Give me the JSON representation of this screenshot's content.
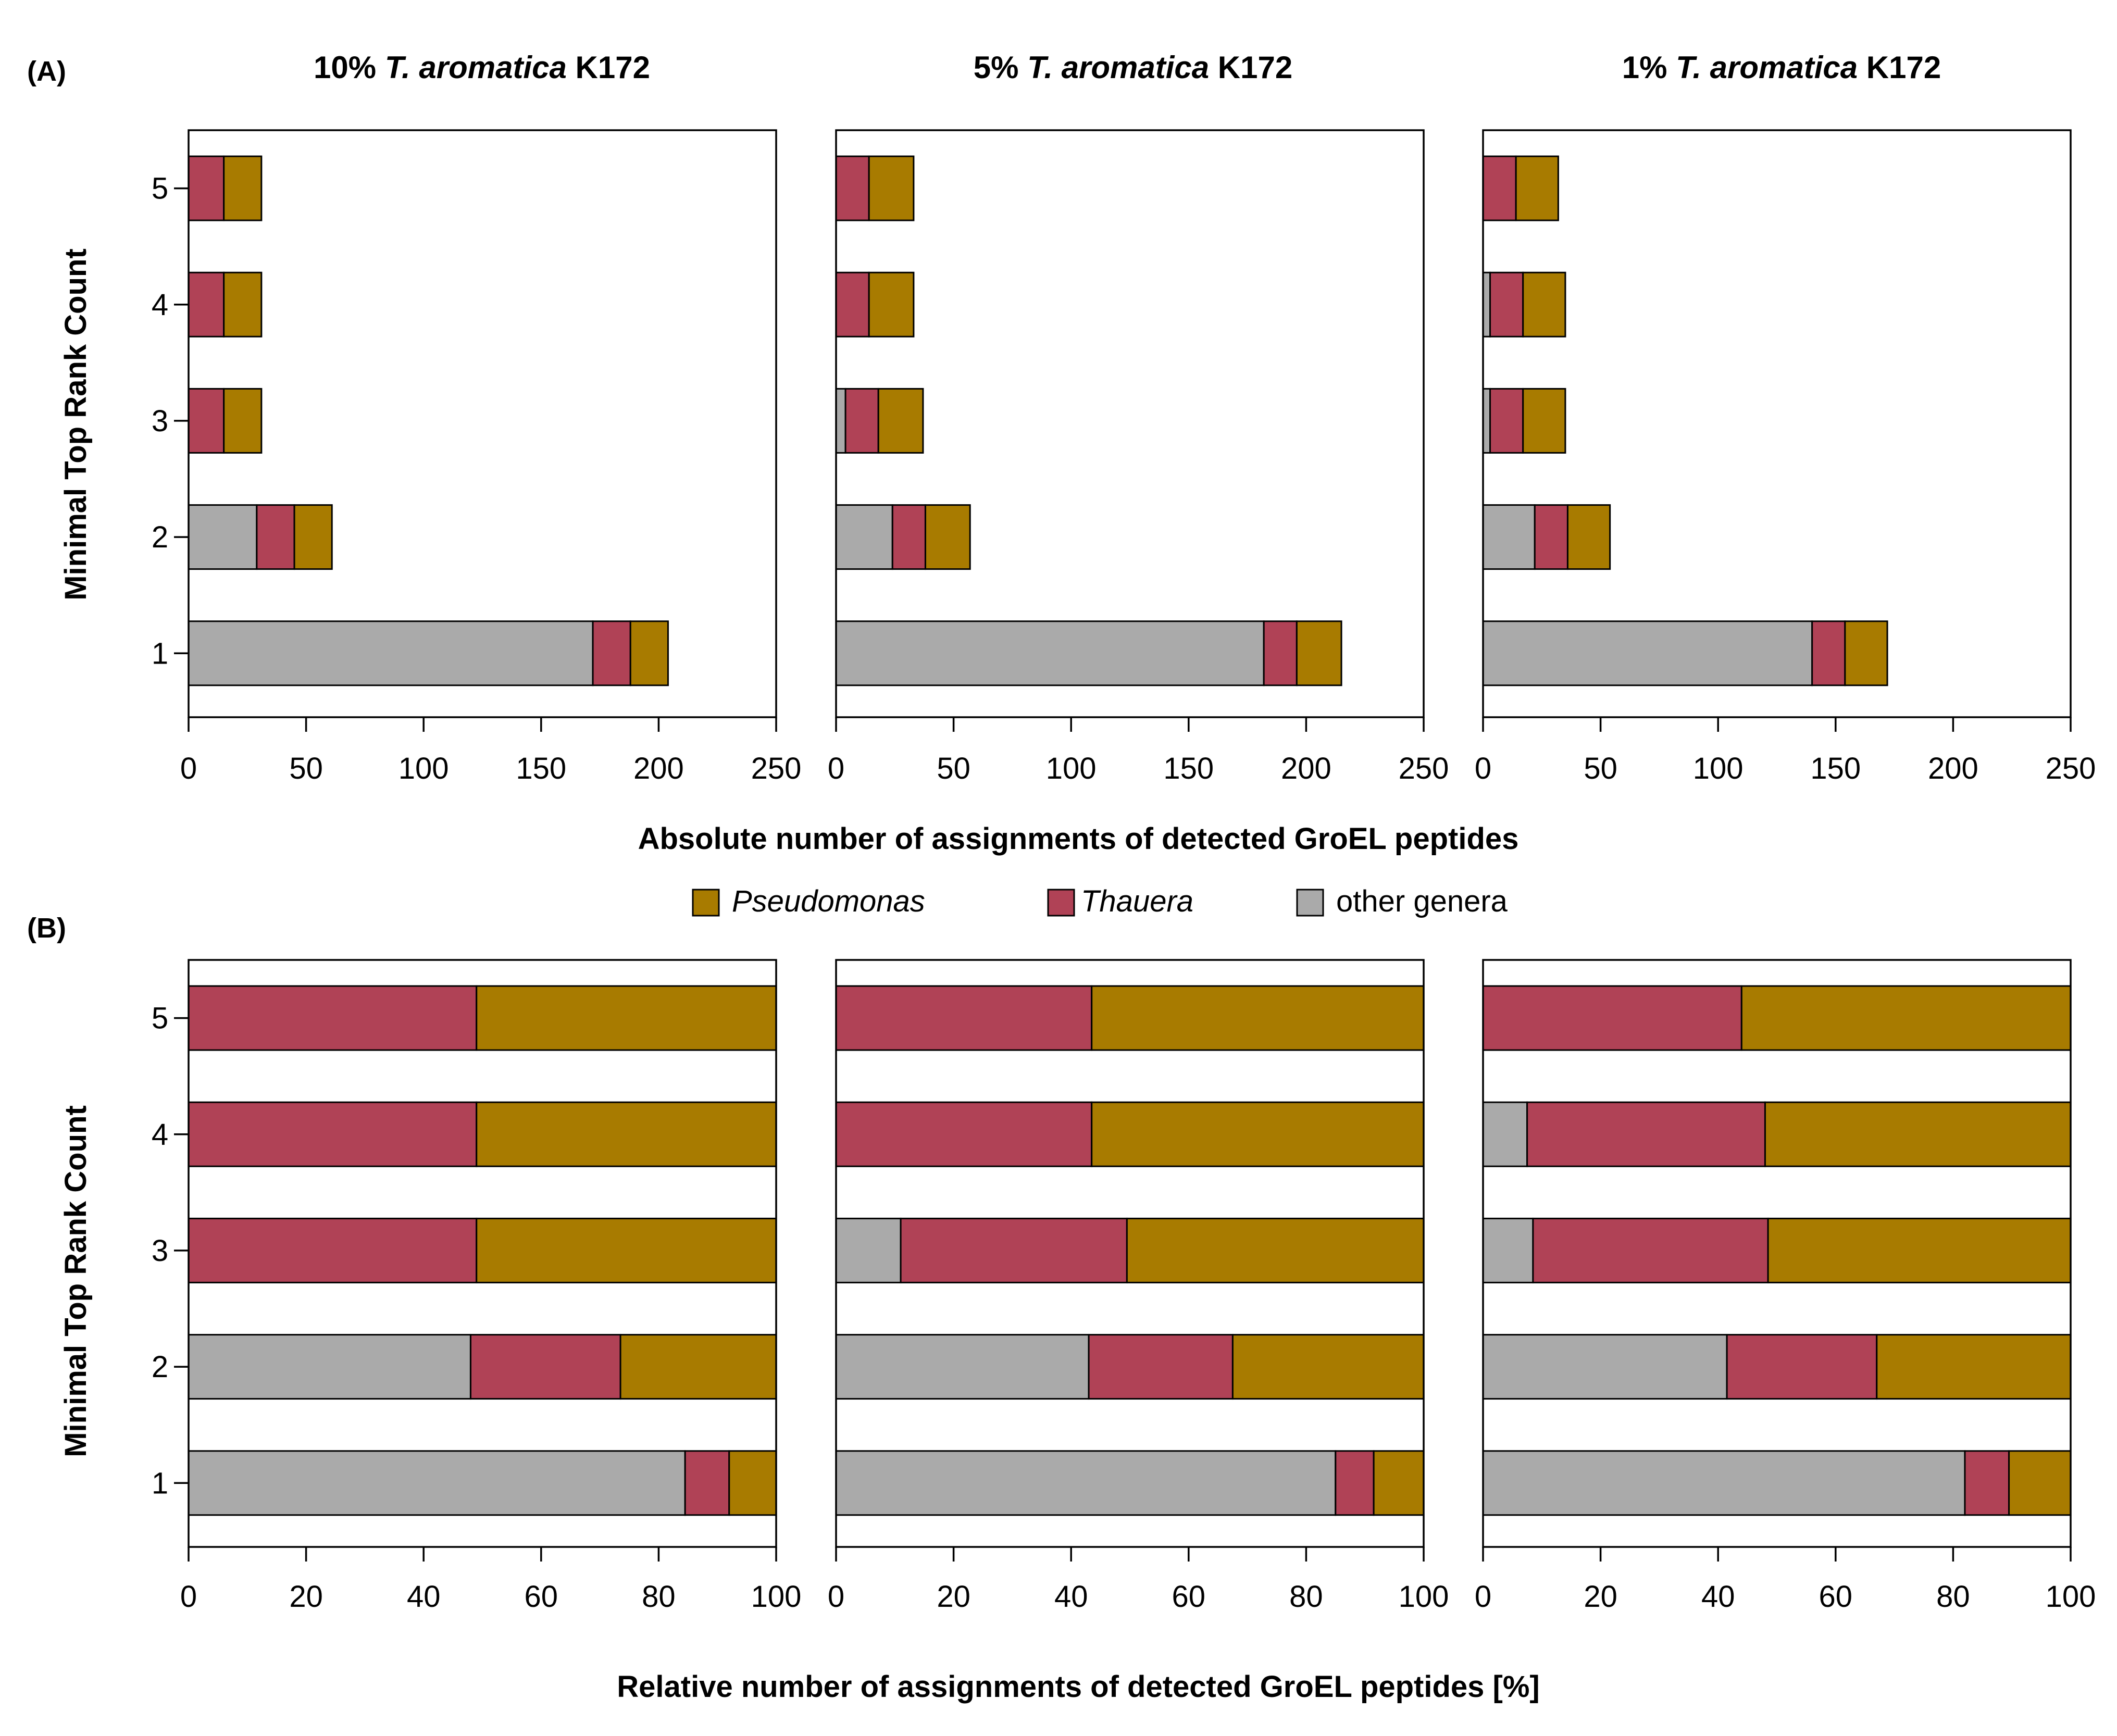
{
  "figure": {
    "panel_a_label": "(A)",
    "panel_b_label": "(B)",
    "column_titles": [
      {
        "prefix": "10% ",
        "species": "T. aromatica",
        "strain": " K172"
      },
      {
        "prefix": "5% ",
        "species": "T. aromatica",
        "strain": " K172"
      },
      {
        "prefix": "1% ",
        "species": "T. aromatica",
        "strain": " K172"
      }
    ],
    "ylabel": "Minimal Top Rank Count",
    "xlabel_a": "Absolute number of assignments of detected GroEL peptides",
    "xlabel_b": "Relative number of assignments of detected GroEL peptides [%]",
    "legend": [
      {
        "name": "Pseudomonas",
        "color": "#a87b00",
        "italic": true
      },
      {
        "name": "Thauera",
        "color": "#b04256",
        "italic": true
      },
      {
        "name": "other genera",
        "color": "#aaaaaa",
        "italic": false
      }
    ],
    "colors": {
      "other": "#aaaaaa",
      "thauera": "#b04256",
      "pseudomonas": "#a87b00"
    }
  },
  "chart_data": [
    {
      "type": "bar",
      "orientation": "horizontal",
      "stacked": true,
      "panel": "A",
      "title": "10% T. aromatica K172",
      "categories": [
        "1",
        "2",
        "3",
        "4",
        "5"
      ],
      "xlim": [
        0,
        250
      ],
      "xticks": [
        0,
        50,
        100,
        150,
        200,
        250
      ],
      "yticks": [
        1,
        2,
        3,
        4,
        5
      ],
      "series": [
        {
          "name": "other genera",
          "values": [
            172,
            29,
            0,
            0,
            0
          ]
        },
        {
          "name": "Thauera",
          "values": [
            16,
            16,
            15,
            15,
            15
          ]
        },
        {
          "name": "Pseudomonas",
          "values": [
            16,
            16,
            16,
            16,
            16
          ]
        }
      ]
    },
    {
      "type": "bar",
      "orientation": "horizontal",
      "stacked": true,
      "panel": "A",
      "title": "5% T. aromatica K172",
      "categories": [
        "1",
        "2",
        "3",
        "4",
        "5"
      ],
      "xlim": [
        0,
        250
      ],
      "xticks": [
        0,
        50,
        100,
        150,
        200,
        250
      ],
      "yticks": [
        1,
        2,
        3,
        4,
        5
      ],
      "series": [
        {
          "name": "other genera",
          "values": [
            182,
            24,
            4,
            0,
            0
          ]
        },
        {
          "name": "Thauera",
          "values": [
            14,
            14,
            14,
            14,
            14
          ]
        },
        {
          "name": "Pseudomonas",
          "values": [
            19,
            19,
            19,
            19,
            19
          ]
        }
      ]
    },
    {
      "type": "bar",
      "orientation": "horizontal",
      "stacked": true,
      "panel": "A",
      "title": "1% T. aromatica K172",
      "categories": [
        "1",
        "2",
        "3",
        "4",
        "5"
      ],
      "xlim": [
        0,
        250
      ],
      "xticks": [
        0,
        50,
        100,
        150,
        200,
        250
      ],
      "yticks": [
        1,
        2,
        3,
        4,
        5
      ],
      "series": [
        {
          "name": "other genera",
          "values": [
            140,
            22,
            3,
            3,
            0
          ]
        },
        {
          "name": "Thauera",
          "values": [
            14,
            14,
            14,
            14,
            14
          ]
        },
        {
          "name": "Pseudomonas",
          "values": [
            18,
            18,
            18,
            18,
            18
          ]
        }
      ]
    },
    {
      "type": "bar",
      "orientation": "horizontal",
      "stacked": true,
      "panel": "B",
      "title": "10% T. aromatica K172",
      "categories": [
        "1",
        "2",
        "3",
        "4",
        "5"
      ],
      "xlim": [
        0,
        100
      ],
      "xticks": [
        0,
        20,
        40,
        60,
        80,
        100
      ],
      "yticks": [
        1,
        2,
        3,
        4,
        5
      ],
      "series": [
        {
          "name": "other genera",
          "values": [
            84.5,
            48,
            0,
            0,
            0
          ]
        },
        {
          "name": "Thauera",
          "values": [
            7.5,
            25.5,
            49,
            49,
            49
          ]
        },
        {
          "name": "Pseudomonas",
          "values": [
            8,
            26.5,
            51,
            51,
            51
          ]
        }
      ]
    },
    {
      "type": "bar",
      "orientation": "horizontal",
      "stacked": true,
      "panel": "B",
      "title": "5% T. aromatica K172",
      "categories": [
        "1",
        "2",
        "3",
        "4",
        "5"
      ],
      "xlim": [
        0,
        100
      ],
      "xticks": [
        0,
        20,
        40,
        60,
        80,
        100
      ],
      "yticks": [
        1,
        2,
        3,
        4,
        5
      ],
      "series": [
        {
          "name": "other genera",
          "values": [
            85,
            43,
            11,
            0,
            0
          ]
        },
        {
          "name": "Thauera",
          "values": [
            6.5,
            24.5,
            38.5,
            43.5,
            43.5
          ]
        },
        {
          "name": "Pseudomonas",
          "values": [
            8.5,
            32.5,
            50.5,
            56.5,
            56.5
          ]
        }
      ]
    },
    {
      "type": "bar",
      "orientation": "horizontal",
      "stacked": true,
      "panel": "B",
      "title": "1% T. aromatica K172",
      "categories": [
        "1",
        "2",
        "3",
        "4",
        "5"
      ],
      "xlim": [
        0,
        100
      ],
      "xticks": [
        0,
        20,
        40,
        60,
        80,
        100
      ],
      "yticks": [
        1,
        2,
        3,
        4,
        5
      ],
      "series": [
        {
          "name": "other genera",
          "values": [
            82,
            41.5,
            8.5,
            7.5,
            0
          ]
        },
        {
          "name": "Thauera",
          "values": [
            7.5,
            25.5,
            40,
            40.5,
            44
          ]
        },
        {
          "name": "Pseudomonas",
          "values": [
            10.5,
            33,
            51.5,
            52,
            56
          ]
        }
      ]
    }
  ]
}
